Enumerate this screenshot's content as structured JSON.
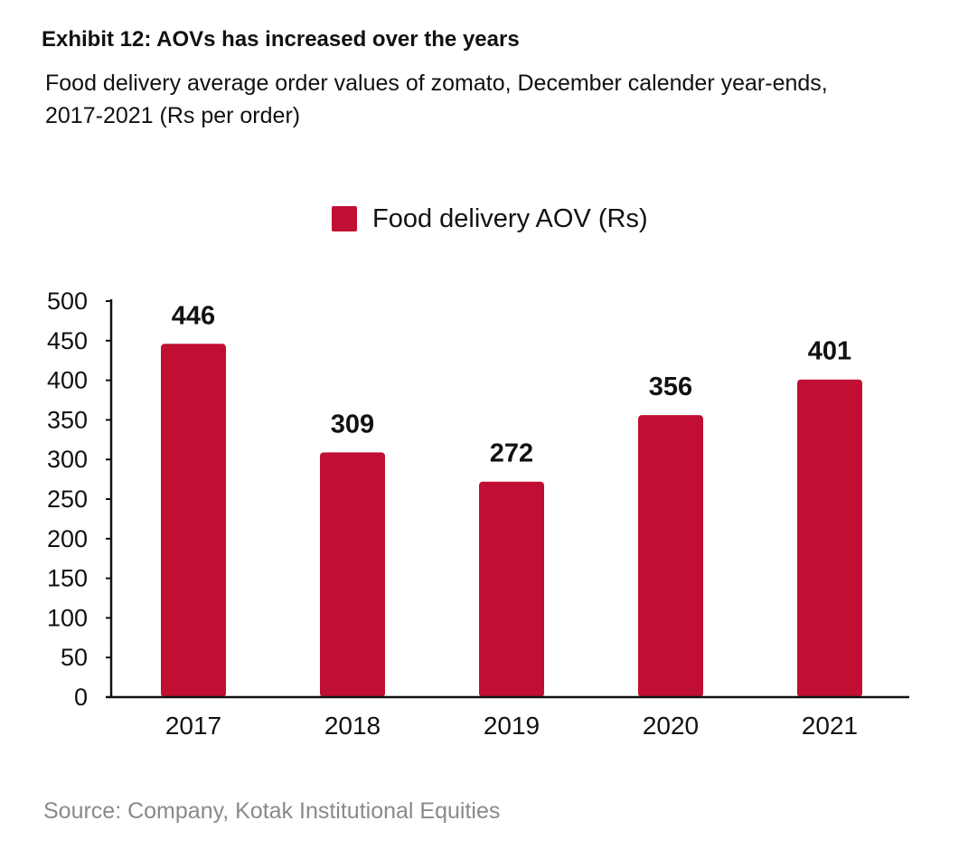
{
  "header": {
    "title": "Exhibit 12: AOVs has increased over the years",
    "subtitle_line1": "Food delivery average order values of zomato, December calender year-ends,",
    "subtitle_line2": "2017-2021 (Rs per order)"
  },
  "footer": {
    "source": "Source: Company, Kotak Institutional Equities"
  },
  "colors": {
    "bar": "#c10f33",
    "axis": "#111111"
  },
  "chart_data": {
    "type": "bar",
    "categories": [
      "2017",
      "2018",
      "2019",
      "2020",
      "2021"
    ],
    "series": [
      {
        "name": "Food delivery AOV (Rs)",
        "values": [
          446,
          309,
          272,
          356,
          401
        ]
      }
    ],
    "data_labels": [
      "446",
      "309",
      "272",
      "356",
      "401"
    ],
    "yticks": [
      0,
      50,
      100,
      150,
      200,
      250,
      300,
      350,
      400,
      450,
      500
    ],
    "ylim": [
      0,
      500
    ],
    "legend_position": "top-center",
    "grid": false
  }
}
